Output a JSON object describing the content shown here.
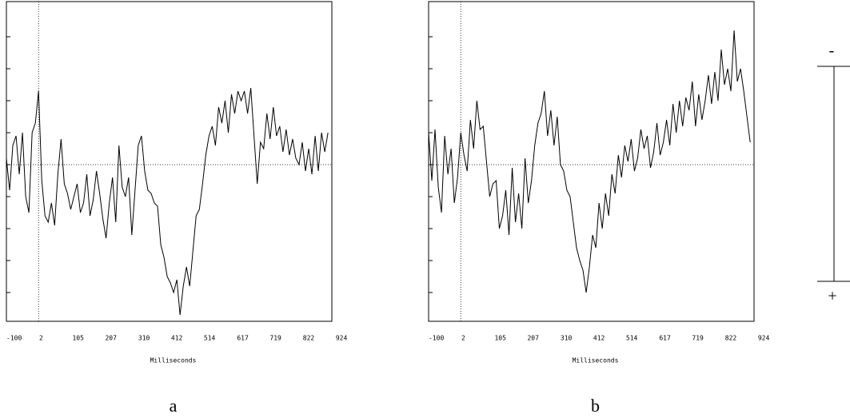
{
  "chart_data": [
    {
      "type": "line",
      "xlabel": "Milliseconds",
      "caption": "a",
      "y_inverted": true,
      "xlim": [
        -100,
        912
      ],
      "ylim": [
        -5.1,
        4.9
      ],
      "xticks": [
        -100,
        2,
        105,
        207,
        310,
        412,
        514,
        617,
        719,
        822,
        924
      ],
      "yticks": [
        -4,
        -3,
        -2,
        -1,
        0,
        1,
        2,
        3,
        4
      ],
      "vline": 0,
      "hline": 0,
      "color": "#000000",
      "x": [
        -100,
        -90,
        -80,
        -70,
        -60,
        -50,
        -40,
        -30,
        -20,
        -10,
        0,
        10,
        20,
        30,
        40,
        50,
        60,
        70,
        80,
        90,
        100,
        110,
        120,
        130,
        140,
        150,
        160,
        170,
        180,
        190,
        200,
        210,
        220,
        230,
        240,
        250,
        260,
        270,
        280,
        290,
        300,
        310,
        320,
        330,
        340,
        350,
        360,
        370,
        380,
        390,
        400,
        410,
        420,
        430,
        440,
        450,
        460,
        470,
        480,
        490,
        500,
        510,
        520,
        530,
        540,
        550,
        560,
        570,
        580,
        590,
        600,
        610,
        620,
        630,
        640,
        650,
        660,
        670,
        680,
        690,
        700,
        710,
        720,
        730,
        740,
        750,
        760,
        770,
        780,
        790,
        800,
        810,
        820,
        830,
        840,
        850,
        860,
        870,
        880,
        890,
        900
      ],
      "values": [
        -0.2,
        0.8,
        -0.6,
        -0.9,
        0.3,
        -1.0,
        1.0,
        1.5,
        -1.0,
        -1.3,
        -2.3,
        0.5,
        1.6,
        1.8,
        1.2,
        1.9,
        0.3,
        -0.8,
        0.6,
        0.9,
        1.4,
        1.0,
        0.6,
        1.5,
        1.2,
        0.3,
        1.6,
        1.1,
        0.2,
        0.9,
        1.7,
        2.3,
        1.2,
        0.4,
        1.8,
        -0.6,
        0.7,
        1.0,
        0.4,
        2.2,
        0.8,
        -0.6,
        -0.9,
        0.2,
        0.8,
        0.9,
        1.2,
        1.3,
        2.5,
        2.9,
        3.5,
        3.7,
        4.0,
        3.6,
        4.7,
        3.8,
        3.2,
        3.8,
        2.7,
        1.6,
        1.4,
        0.6,
        -0.3,
        -0.9,
        -1.2,
        -0.6,
        -1.8,
        -1.3,
        -2.0,
        -1.0,
        -2.2,
        -1.6,
        -2.3,
        -2.0,
        -2.3,
        -1.6,
        -2.4,
        -0.9,
        0.6,
        -0.7,
        -0.5,
        -1.6,
        -0.8,
        -1.8,
        -0.9,
        -1.2,
        -0.4,
        -1.1,
        -0.3,
        -0.8,
        -0.2,
        0.0,
        -0.7,
        0.2,
        -0.5,
        0.3,
        -0.9,
        0.2,
        -1.0,
        -0.4,
        -1.0
      ]
    },
    {
      "type": "line",
      "xlabel": "Milliseconds",
      "caption": "b",
      "y_inverted": true,
      "xlim": [
        -100,
        912
      ],
      "ylim": [
        -5.1,
        4.9
      ],
      "xticks": [
        -100,
        2,
        105,
        207,
        310,
        412,
        514,
        617,
        719,
        822,
        924
      ],
      "yticks": [
        -4,
        -3,
        -2,
        -1,
        0,
        1,
        2,
        3,
        4
      ],
      "vline": 0,
      "hline": 0,
      "color": "#000000",
      "x": [
        -100,
        -90,
        -80,
        -70,
        -60,
        -50,
        -40,
        -30,
        -20,
        -10,
        0,
        10,
        20,
        30,
        40,
        50,
        60,
        70,
        80,
        90,
        100,
        110,
        120,
        130,
        140,
        150,
        160,
        170,
        180,
        190,
        200,
        210,
        220,
        230,
        240,
        250,
        260,
        270,
        280,
        290,
        300,
        310,
        320,
        330,
        340,
        350,
        360,
        370,
        380,
        390,
        400,
        410,
        420,
        430,
        440,
        450,
        460,
        470,
        480,
        490,
        500,
        510,
        520,
        530,
        540,
        550,
        560,
        570,
        580,
        590,
        600,
        610,
        620,
        630,
        640,
        650,
        660,
        670,
        680,
        690,
        700,
        710,
        720,
        730,
        740,
        750,
        760,
        770,
        780,
        790,
        800,
        810,
        820,
        830,
        840,
        850,
        860,
        870,
        880,
        890,
        900
      ],
      "values": [
        -1.0,
        0.5,
        -1.1,
        0.7,
        1.5,
        -0.9,
        0.3,
        -0.5,
        1.2,
        0.4,
        -1.0,
        -0.3,
        0.2,
        -1.4,
        -0.5,
        -2.0,
        -1.1,
        -1.2,
        -0.1,
        1.0,
        0.6,
        0.5,
        2.0,
        1.6,
        0.8,
        2.2,
        0.1,
        1.8,
        0.9,
        2.0,
        -0.2,
        1.2,
        0.5,
        -0.6,
        -1.3,
        -1.6,
        -2.3,
        -0.9,
        -1.7,
        -0.6,
        -1.5,
        0.0,
        0.2,
        0.8,
        1.0,
        1.8,
        2.6,
        3.0,
        3.3,
        4.0,
        3.2,
        2.2,
        2.6,
        1.2,
        2.0,
        0.9,
        1.6,
        0.3,
        0.9,
        -0.3,
        0.4,
        -0.6,
        -0.1,
        -0.8,
        0.2,
        -0.2,
        -1.1,
        -0.5,
        -0.9,
        0.1,
        -0.4,
        -1.3,
        -0.3,
        -0.7,
        -1.4,
        -0.6,
        -1.9,
        -1.0,
        -2.0,
        -1.2,
        -2.1,
        -1.7,
        -2.6,
        -1.2,
        -2.2,
        -1.4,
        -2.0,
        -2.8,
        -1.9,
        -2.9,
        -2.0,
        -3.6,
        -2.5,
        -3.0,
        -2.3,
        -4.2,
        -2.6,
        -3.0,
        -2.3,
        -1.5,
        -0.7
      ]
    }
  ],
  "scale_bar": {
    "top_label": "-",
    "bottom_label": "+"
  }
}
